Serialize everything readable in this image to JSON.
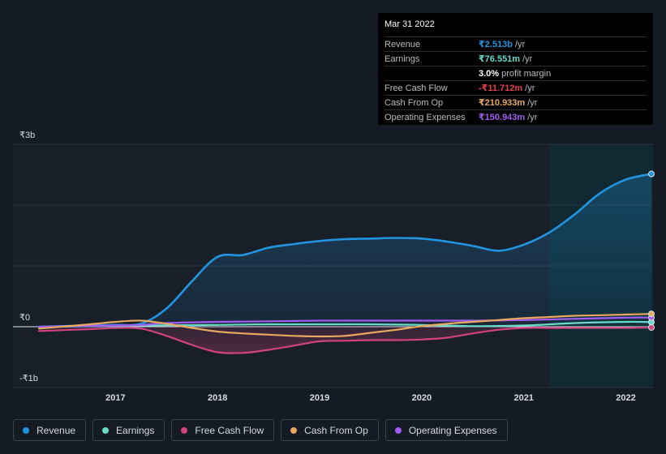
{
  "tooltip": {
    "date": "Mar 31 2022",
    "rows": [
      {
        "label": "Revenue",
        "value": "₹2.513b",
        "unit": "/yr",
        "color": "#2394df"
      },
      {
        "label": "Earnings",
        "value": "₹76.551m",
        "unit": "/yr",
        "color": "#6ad9c8"
      },
      {
        "label": "",
        "value": "3.0%",
        "unit": "profit margin",
        "color": "#ffffff"
      },
      {
        "label": "Free Cash Flow",
        "value": "-₹11.712m",
        "unit": "/yr",
        "color": "#e5404f"
      },
      {
        "label": "Cash From Op",
        "value": "₹210.933m",
        "unit": "/yr",
        "color": "#e8a860"
      },
      {
        "label": "Operating Expenses",
        "value": "₹150.943m",
        "unit": "/yr",
        "color": "#a35cf0"
      }
    ]
  },
  "legend": [
    {
      "label": "Revenue",
      "color": "#2394df"
    },
    {
      "label": "Earnings",
      "color": "#6ad9c8"
    },
    {
      "label": "Free Cash Flow",
      "color": "#d0437f"
    },
    {
      "label": "Cash From Op",
      "color": "#e8a860"
    },
    {
      "label": "Operating Expenses",
      "color": "#a35cf0"
    }
  ],
  "chart_data": {
    "type": "area",
    "title": "",
    "xlabel": "",
    "ylabel": "",
    "currency_symbol": "₹",
    "ylim": [
      -1,
      3
    ],
    "y_ticks": [
      {
        "value": 3,
        "label": "₹3b"
      },
      {
        "value": 0,
        "label": "₹0"
      },
      {
        "value": -1,
        "label": "-₹1b"
      }
    ],
    "x_ticks": [
      2017,
      2018,
      2019,
      2020,
      2021,
      2022
    ],
    "xlim": [
      2016.25,
      2022.25
    ],
    "highlight_start": 2021.25,
    "series": [
      {
        "name": "Revenue",
        "color": "#2394df",
        "x": [
          2016.25,
          2016.75,
          2017.0,
          2017.25,
          2017.5,
          2017.75,
          2018.0,
          2018.25,
          2018.5,
          2018.75,
          2019.0,
          2019.25,
          2019.5,
          2019.75,
          2020.0,
          2020.25,
          2020.5,
          2020.75,
          2021.0,
          2021.25,
          2021.5,
          2021.75,
          2022.0,
          2022.25
        ],
        "values": [
          0.0,
          0.02,
          0.03,
          0.05,
          0.3,
          0.75,
          1.15,
          1.18,
          1.3,
          1.36,
          1.41,
          1.44,
          1.45,
          1.46,
          1.45,
          1.4,
          1.33,
          1.25,
          1.35,
          1.55,
          1.85,
          2.2,
          2.42,
          2.513
        ]
      },
      {
        "name": "Earnings",
        "color": "#6ad9c8",
        "x": [
          2016.25,
          2017.0,
          2017.25,
          2018.0,
          2018.5,
          2019.0,
          2019.5,
          2020.0,
          2020.5,
          2021.0,
          2021.5,
          2022.0,
          2022.25
        ],
        "values": [
          0.0,
          0.01,
          0.02,
          0.03,
          0.04,
          0.04,
          0.04,
          0.03,
          0.01,
          0.02,
          0.06,
          0.08,
          0.0766
        ]
      },
      {
        "name": "Free Cash Flow",
        "color": "#d0437f",
        "x": [
          2016.25,
          2016.75,
          2017.0,
          2017.25,
          2017.5,
          2017.75,
          2018.0,
          2018.25,
          2018.5,
          2018.75,
          2019.0,
          2019.25,
          2019.5,
          2019.75,
          2020.0,
          2020.25,
          2020.5,
          2020.75,
          2021.0,
          2021.25,
          2021.5,
          2021.75,
          2022.0,
          2022.25
        ],
        "values": [
          -0.07,
          -0.04,
          -0.02,
          -0.03,
          -0.15,
          -0.3,
          -0.42,
          -0.43,
          -0.38,
          -0.31,
          -0.24,
          -0.23,
          -0.22,
          -0.22,
          -0.21,
          -0.18,
          -0.11,
          -0.05,
          -0.02,
          -0.02,
          -0.02,
          -0.02,
          -0.02,
          -0.0117
        ]
      },
      {
        "name": "Cash From Op",
        "color": "#e8a860",
        "x": [
          2016.25,
          2016.75,
          2017.0,
          2017.25,
          2017.5,
          2017.75,
          2018.0,
          2018.25,
          2018.5,
          2018.75,
          2019.0,
          2019.25,
          2019.5,
          2019.75,
          2020.0,
          2020.25,
          2020.5,
          2020.75,
          2021.0,
          2021.25,
          2021.5,
          2021.75,
          2022.0,
          2022.25
        ],
        "values": [
          -0.03,
          0.04,
          0.08,
          0.1,
          0.05,
          -0.02,
          -0.08,
          -0.11,
          -0.13,
          -0.15,
          -0.16,
          -0.15,
          -0.1,
          -0.05,
          0.01,
          0.05,
          0.08,
          0.11,
          0.14,
          0.16,
          0.18,
          0.19,
          0.2,
          0.211
        ]
      },
      {
        "name": "Operating Expenses",
        "color": "#a35cf0",
        "x": [
          2016.25,
          2017.0,
          2017.25,
          2017.5,
          2018.0,
          2018.5,
          2019.0,
          2019.5,
          2020.0,
          2020.5,
          2021.0,
          2021.5,
          2022.0,
          2022.25
        ],
        "values": [
          0.0,
          0.02,
          0.03,
          0.06,
          0.08,
          0.09,
          0.1,
          0.1,
          0.1,
          0.1,
          0.11,
          0.13,
          0.15,
          0.151
        ]
      }
    ]
  }
}
